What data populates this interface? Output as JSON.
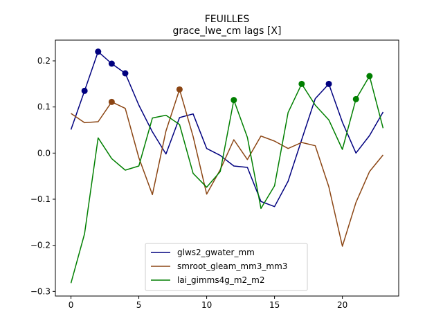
{
  "chart_data": {
    "type": "line",
    "title": "FEUILLES",
    "subtitle": "grace_lwe_cm lags [X]",
    "xlabel": "",
    "ylabel": "",
    "xlim": [
      -1.15,
      24.15
    ],
    "ylim": [
      -0.31,
      0.245
    ],
    "xticks": [
      0,
      5,
      10,
      15,
      20
    ],
    "yticks": [
      -0.3,
      -0.2,
      -0.1,
      0.0,
      0.1,
      0.2
    ],
    "ytick_labels": [
      "−0.3",
      "−0.2",
      "−0.1",
      "0.0",
      "0.1",
      "0.2"
    ],
    "grid": false,
    "legend_position": "lower-center",
    "x": [
      0,
      1,
      2,
      3,
      4,
      5,
      6,
      7,
      8,
      9,
      10,
      11,
      12,
      13,
      14,
      15,
      16,
      17,
      18,
      19,
      20,
      21,
      22,
      23
    ],
    "series": [
      {
        "name": "glws2_gwater_mm",
        "color": "#00007f",
        "values": [
          0.051,
          0.135,
          0.22,
          0.194,
          0.173,
          0.104,
          0.046,
          -0.002,
          0.077,
          0.085,
          0.01,
          -0.005,
          -0.028,
          -0.031,
          -0.105,
          -0.116,
          -0.061,
          0.029,
          0.118,
          0.15,
          0.067,
          0.0,
          0.038,
          0.089
        ],
        "markers": [
          1,
          2,
          3,
          4,
          19
        ]
      },
      {
        "name": "smroot_gleam_mm3_mm3",
        "color": "#8b4513",
        "values": [
          0.086,
          0.066,
          0.068,
          0.111,
          0.097,
          -0.01,
          -0.09,
          0.048,
          0.138,
          0.036,
          -0.089,
          -0.036,
          0.029,
          -0.014,
          0.037,
          0.026,
          0.01,
          0.023,
          0.016,
          -0.073,
          -0.202,
          -0.107,
          -0.04,
          -0.004
        ],
        "markers": [
          3,
          8
        ]
      },
      {
        "name": "lai_gimms4g_m2_m2",
        "color": "#007f00",
        "values": [
          -0.282,
          -0.175,
          0.033,
          -0.012,
          -0.037,
          -0.028,
          0.076,
          0.082,
          0.062,
          -0.044,
          -0.074,
          -0.04,
          0.115,
          0.034,
          -0.12,
          -0.071,
          0.088,
          0.15,
          0.104,
          0.072,
          0.008,
          0.117,
          0.167,
          0.054
        ],
        "markers": [
          12,
          17,
          21,
          22
        ]
      }
    ]
  }
}
